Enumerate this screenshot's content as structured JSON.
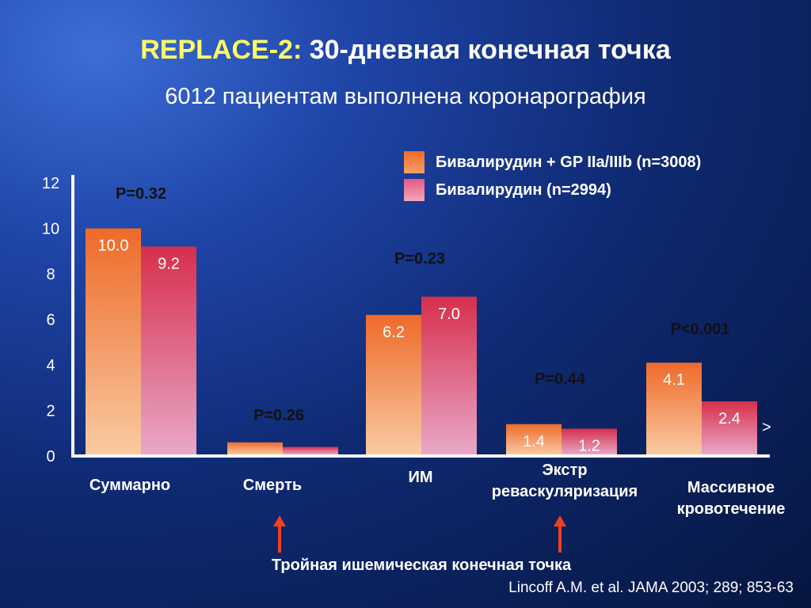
{
  "header": {
    "title_part1": "REPLACE-2:",
    "title_part2": " 30-дневная конечная точка",
    "subtitle": "6012 пациентам выполнена коронарография"
  },
  "legend": [
    {
      "label": "Бивалирудин + GP IIa/IIIb (n=3008)",
      "color": "#ee6a2a"
    },
    {
      "label": "Бивалирудин (n=2994)",
      "color": "#e25a86"
    }
  ],
  "chart_data": {
    "type": "bar",
    "categories": [
      "Суммарно",
      "Смерть",
      "ИМ",
      "Экстр реваскуляризация",
      "Массивное кровотечение"
    ],
    "series": [
      {
        "name": "Бивалирудин + GP IIa/IIIb (n=3008)",
        "values": [
          10.0,
          0.6,
          6.2,
          1.4,
          4.1
        ],
        "labels": [
          "10.0",
          "",
          "6.2",
          "1.4",
          "4.1"
        ]
      },
      {
        "name": "Бивалирудин (n=2994)",
        "values": [
          9.2,
          0.4,
          7.0,
          1.2,
          2.4
        ],
        "labels": [
          "9.2",
          "",
          "7.0",
          "1.2",
          "2.4"
        ]
      }
    ],
    "p_values": [
      "P=0.32",
      "P=0.26",
      "P=0.23",
      "P=0.44",
      "P<0.001"
    ],
    "ylim": [
      0,
      12
    ],
    "yticks": [
      "0",
      "2",
      "4",
      "6",
      "8",
      "10",
      "12"
    ],
    "xlabel": "",
    "ylabel": "",
    "grid": false,
    "legend_position": "top-right"
  },
  "category_labels": {
    "total": "Суммарно",
    "death": "Смерть",
    "mi": "ИМ",
    "revasc_line1": "Экстр",
    "revasc_line2": "реваскуляризация",
    "bleeding_line1": "Массивное",
    "bleeding_line2": "кровотечение"
  },
  "triple_endpoint_label": "Тройная ишемическая конечная точка",
  "stray_mark": ">",
  "source": "Lincoff A.M. et al. JAMA 2003; 289; 853-63",
  "colors": {
    "series1_top": "#ee6a2a",
    "series1_bottom": "#f9caa2",
    "series2_top": "#d62f4c",
    "series2_bottom": "#e9a8c8",
    "title_accent": "#ffff66",
    "arrow": "#f04020"
  }
}
